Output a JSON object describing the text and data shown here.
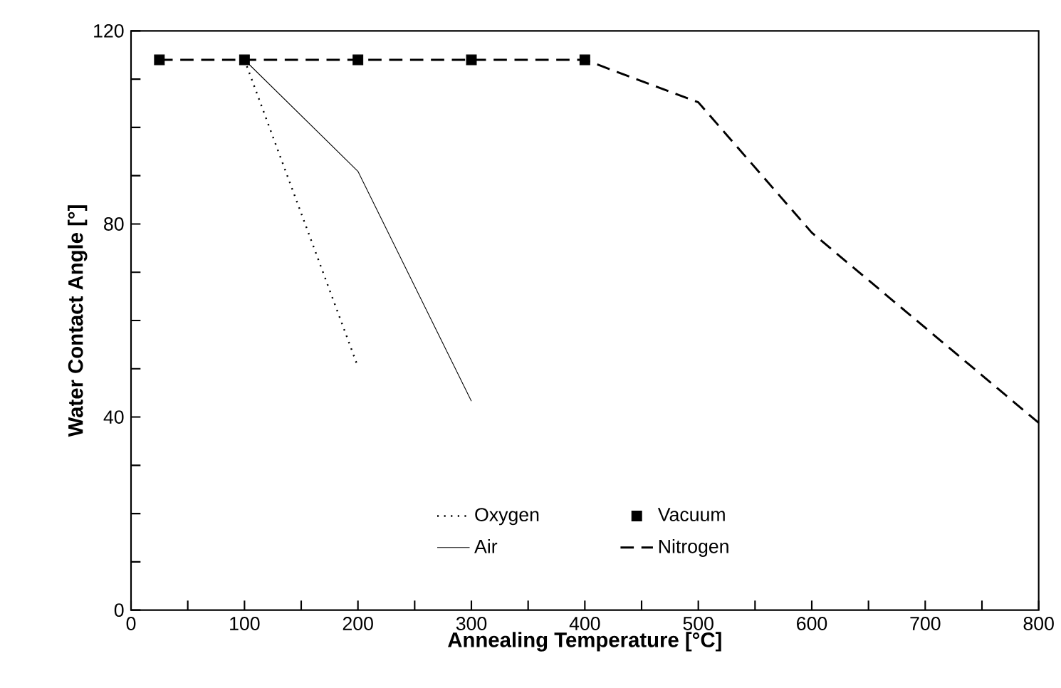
{
  "chart_data": {
    "type": "line",
    "xlabel": "Annealing Temperature [°C]",
    "ylabel": "Water Contact Angle [°]",
    "xlim": [
      0,
      800
    ],
    "ylim": [
      0,
      120
    ],
    "xticks": [
      0,
      {
        "value": 50,
        "label": null
      },
      100,
      {
        "value": 150,
        "label": null
      },
      200,
      {
        "value": 250,
        "label": null
      },
      300,
      {
        "value": 350,
        "label": null
      },
      400,
      {
        "value": 450,
        "label": null
      },
      500,
      {
        "value": 550,
        "label": null
      },
      600,
      {
        "value": 650,
        "label": null
      },
      700,
      {
        "value": 750,
        "label": null
      },
      800
    ],
    "yticks": [
      0,
      {
        "value": 10,
        "label": null
      },
      {
        "value": 20,
        "label": null
      },
      {
        "value": 30,
        "label": null
      },
      40,
      {
        "value": 50,
        "label": null
      },
      {
        "value": 60,
        "label": null
      },
      {
        "value": 70,
        "label": null
      },
      80,
      {
        "value": 90,
        "label": null
      },
      {
        "value": 100,
        "label": null
      },
      {
        "value": 110,
        "label": null
      },
      120
    ],
    "legend": "bottom",
    "grid": false,
    "series": [
      {
        "name": "Oxygen",
        "color": "#000000",
        "line_style": "dotted",
        "marker": "none",
        "x": [
          100,
          200
        ],
        "values": [
          114,
          50.4
        ]
      },
      {
        "name": "Vacuum",
        "color": "#000000",
        "type": "scatter",
        "marker": "square",
        "x": [
          25,
          100,
          200,
          300,
          400
        ],
        "values": [
          114,
          114,
          114,
          114,
          114
        ]
      },
      {
        "name": "Air",
        "color": "#000000",
        "line_style": "solid",
        "marker": "none",
        "x": [
          100,
          200,
          300
        ],
        "values": [
          114,
          90.9,
          43.3
        ]
      },
      {
        "name": "Nitrogen",
        "color": "#000000",
        "line_style": "dashed",
        "marker": "none",
        "x": [
          25,
          400,
          500,
          600,
          800
        ],
        "values": [
          114,
          114,
          105.2,
          78.2,
          38.8
        ]
      }
    ]
  }
}
